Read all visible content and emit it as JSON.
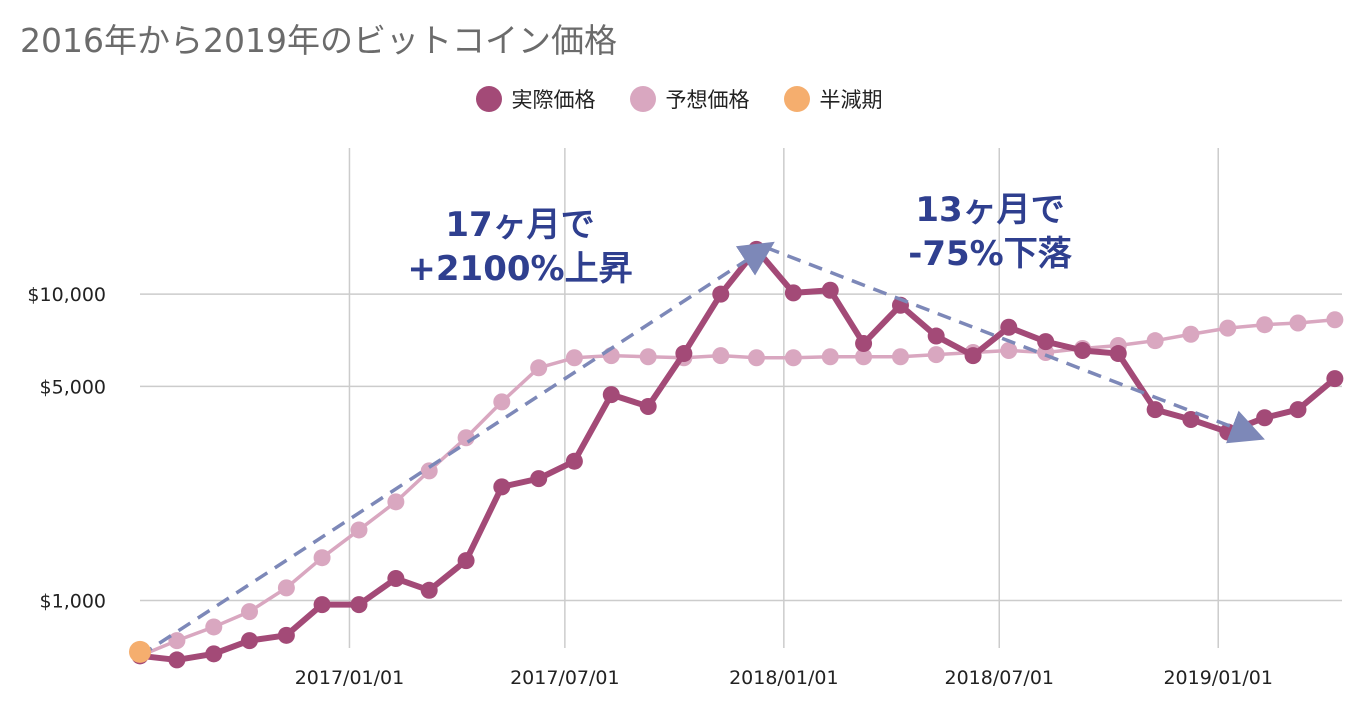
{
  "chart_data": {
    "type": "line",
    "title": "2016年から2019年のビットコイン価格",
    "xlabel": "",
    "ylabel": "",
    "y_scale": "log",
    "ylim": [
      700,
      30000
    ],
    "xlim": [
      "2016-07-09",
      "2019-04-15"
    ],
    "grid": true,
    "legend_position": "top",
    "x_ticks": [
      "2017/01/01",
      "2017/07/01",
      "2018/01/01",
      "2018/07/01",
      "2019/01/01"
    ],
    "y_ticks": [
      {
        "value": 1000,
        "label": "$1,000"
      },
      {
        "value": 5000,
        "label": "$5,000"
      },
      {
        "value": 10000,
        "label": "$10,000"
      }
    ],
    "series": [
      {
        "name": "実際価格",
        "color": "#a34a77",
        "x": [
          "2016-07-09",
          "2016-08-09",
          "2016-09-09",
          "2016-10-09",
          "2016-11-09",
          "2016-12-09",
          "2017-01-09",
          "2017-02-09",
          "2017-03-09",
          "2017-04-09",
          "2017-05-09",
          "2017-06-09",
          "2017-07-09",
          "2017-08-09",
          "2017-09-09",
          "2017-10-09",
          "2017-11-09",
          "2017-12-09",
          "2018-01-09",
          "2018-02-09",
          "2018-03-09",
          "2018-04-09",
          "2018-05-09",
          "2018-06-09",
          "2018-07-09",
          "2018-08-09",
          "2018-09-09",
          "2018-10-09",
          "2018-11-09",
          "2018-12-09",
          "2019-01-09",
          "2019-02-09",
          "2019-03-09",
          "2019-04-09"
        ],
        "values": [
          660,
          640,
          670,
          740,
          770,
          970,
          970,
          1180,
          1080,
          1350,
          2350,
          2500,
          2850,
          4700,
          4300,
          6400,
          10000,
          14000,
          10100,
          10300,
          6900,
          9200,
          7300,
          6300,
          7800,
          7000,
          6550,
          6400,
          4200,
          3900,
          3550,
          3950,
          4200,
          5300
        ]
      },
      {
        "name": "予想価格",
        "color": "#d9a7c0",
        "x": [
          "2016-07-09",
          "2016-08-09",
          "2016-09-09",
          "2016-10-09",
          "2016-11-09",
          "2016-12-09",
          "2017-01-09",
          "2017-02-09",
          "2017-03-09",
          "2017-04-09",
          "2017-05-09",
          "2017-06-09",
          "2017-07-09",
          "2017-08-09",
          "2017-09-09",
          "2017-10-09",
          "2017-11-09",
          "2017-12-09",
          "2018-01-09",
          "2018-02-09",
          "2018-03-09",
          "2018-04-09",
          "2018-05-09",
          "2018-06-09",
          "2018-07-09",
          "2018-08-09",
          "2018-09-09",
          "2018-10-09",
          "2018-11-09",
          "2018-12-09",
          "2019-01-09",
          "2019-02-09",
          "2019-03-09",
          "2019-04-09"
        ],
        "values": [
          660,
          740,
          820,
          920,
          1100,
          1380,
          1700,
          2100,
          2650,
          3400,
          4450,
          5750,
          6200,
          6300,
          6250,
          6200,
          6300,
          6200,
          6200,
          6250,
          6250,
          6250,
          6350,
          6450,
          6550,
          6450,
          6650,
          6800,
          7050,
          7400,
          7750,
          7950,
          8050,
          8250
        ]
      },
      {
        "name": "半減期",
        "color": "#f5ae6e",
        "x": [
          "2016-07-09"
        ],
        "values": [
          680
        ]
      }
    ],
    "annotations": [
      {
        "text": [
          "17ヶ月で",
          "+2100%上昇"
        ],
        "arrow": {
          "from": [
            "2016-07-09",
            660
          ],
          "to": [
            "2017-12-17",
            14200
          ]
        }
      },
      {
        "text": [
          "13ヶ月で",
          "-75%下落"
        ],
        "arrow": {
          "from": [
            "2017-12-17",
            14200
          ],
          "to": [
            "2019-02-01",
            3450
          ]
        }
      }
    ],
    "annotation_color": "#2f3f8f",
    "arrow_color": "#7d88b8",
    "grid_color": "#cccccc"
  }
}
